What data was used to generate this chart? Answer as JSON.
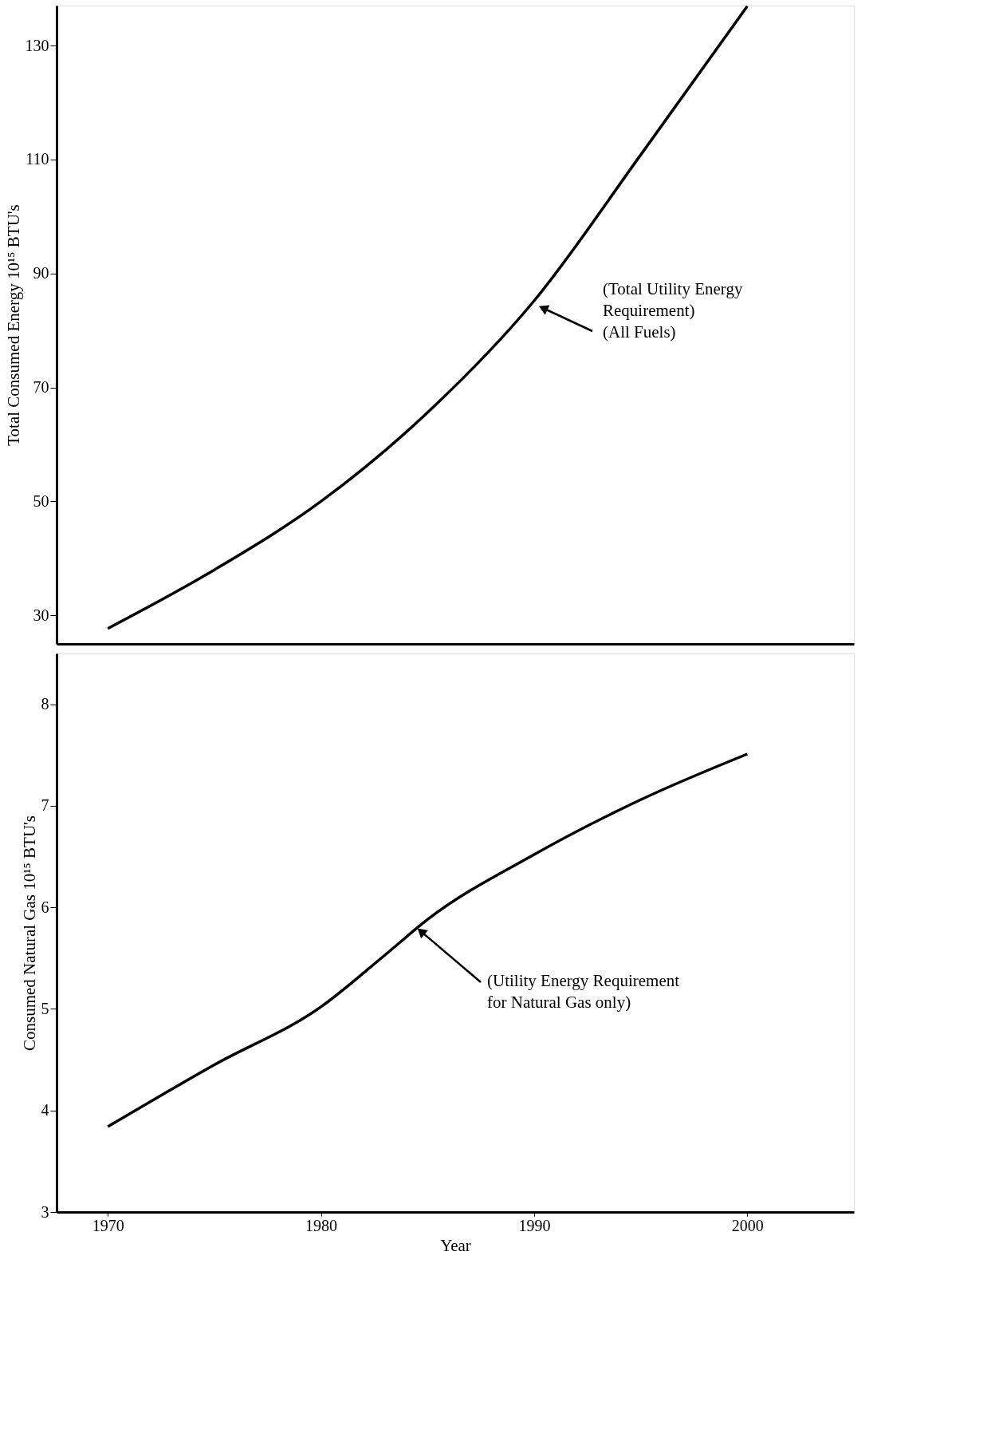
{
  "chart_data": [
    {
      "type": "line",
      "ylabel": "Total Consumed Energy 10¹⁵ BTU's",
      "x": [
        1970,
        1975,
        1980,
        1985,
        1990,
        1995,
        2000
      ],
      "series": [
        {
          "color": "#000000",
          "values": [
            27.7,
            38,
            50,
            65.6,
            85.2,
            110.8,
            136.9
          ]
        }
      ],
      "xlim": [
        1967.6,
        2005
      ],
      "ylim": [
        25,
        137
      ],
      "yticks": [
        30,
        50,
        70,
        90,
        110,
        130
      ],
      "tick_labels": "y",
      "grid": false,
      "marker": "none",
      "line_style": "solid",
      "annotations": [
        "(Total Utility Energy\nRequirement)\n(All Fuels)"
      ]
    },
    {
      "type": "line",
      "xlabel": "Year",
      "ylabel": "Consumed Natural Gas 10¹⁵ BTU's",
      "x": [
        1970,
        1975,
        1980,
        1983,
        1985,
        1990,
        1995,
        2000
      ],
      "series": [
        {
          "color": "#000000",
          "values": [
            3.84,
            4.45,
            5.02,
            5.53,
            5.88,
            6.52,
            7.06,
            7.51
          ]
        }
      ],
      "xlim": [
        1967.6,
        2005
      ],
      "xticks": [
        1970,
        1980,
        1990,
        2000
      ],
      "ylim": [
        3,
        8.5
      ],
      "yticks": [
        3,
        4,
        5,
        6,
        7,
        8
      ],
      "grid": false,
      "marker": "none",
      "line_style": "solid",
      "annotations": [
        {
          "text": "(Utility Energy Requirement\nfor Natural Gas only)",
          "x": 1984.6,
          "y": 5.8
        }
      ]
    }
  ]
}
